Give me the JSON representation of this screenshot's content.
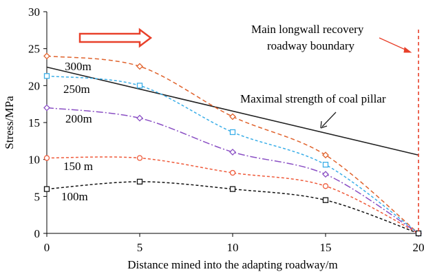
{
  "chart_data": {
    "type": "line",
    "xlabel": "Distance mined into the adapting roadway/m",
    "ylabel": "Stress/MPa",
    "xlim": [
      0,
      20
    ],
    "ylim": [
      0,
      30
    ],
    "xticks": [
      "0",
      "5",
      "10",
      "15",
      "20"
    ],
    "yticks": [
      "0",
      "5",
      "10",
      "15",
      "20",
      "25",
      "30"
    ],
    "grid": false,
    "legend": "inline labels",
    "series": [
      {
        "name": "300m",
        "x": [
          0,
          5,
          10,
          15,
          20
        ],
        "values": [
          24.0,
          22.6,
          15.8,
          10.6,
          0
        ],
        "color": "#e0622c",
        "marker": "diamond",
        "dash": "6,4"
      },
      {
        "name": "250m",
        "x": [
          0,
          5,
          10,
          15,
          20
        ],
        "values": [
          21.3,
          20.0,
          13.7,
          9.3,
          0
        ],
        "color": "#3aaee8",
        "marker": "square",
        "dash": "4,3"
      },
      {
        "name": "200m",
        "x": [
          0,
          5,
          10,
          15,
          20
        ],
        "values": [
          17.0,
          15.6,
          11.0,
          8.0,
          0
        ],
        "color": "#8a4fc4",
        "marker": "diamond",
        "dash": "10,3,2,3"
      },
      {
        "name": "150 m",
        "x": [
          0,
          5,
          10,
          15,
          20
        ],
        "values": [
          10.2,
          10.2,
          8.2,
          6.4,
          0
        ],
        "color": "#ef5a3a",
        "marker": "circle",
        "dash": "4,3"
      },
      {
        "name": "100m",
        "x": [
          0,
          5,
          10,
          15,
          20
        ],
        "values": [
          6.0,
          7.0,
          6.0,
          4.5,
          0
        ],
        "color": "#111111",
        "marker": "square",
        "dash": "4,3"
      }
    ],
    "reference_line": {
      "label": "Maximal strength of coal pillar",
      "x": [
        0,
        20
      ],
      "values": [
        22.5,
        10.6
      ],
      "color": "#222222"
    },
    "boundary": {
      "label_line1": "Main longwall recovery",
      "label_line2": "roadway boundary",
      "x": 20,
      "color": "#e8402a"
    },
    "mining_direction_arrow": {
      "color": "#e8402a"
    }
  }
}
